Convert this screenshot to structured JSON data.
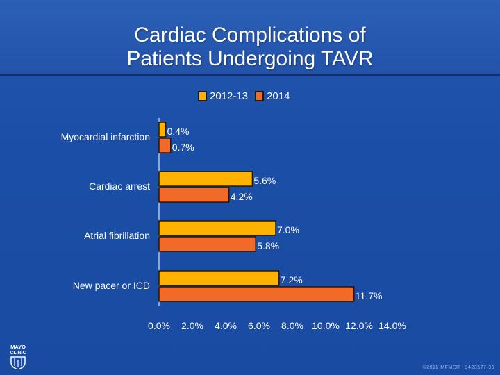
{
  "title_line1": "Cardiac Complications of",
  "title_line2": "Patients Undergoing TAVR",
  "logo_text": "MAYO CLINIC",
  "footer": "©2015 MFMER | 3423577-35",
  "colors": {
    "series_2012_13": "#ffb300",
    "series_2014": "#f26a28",
    "background": "#1b4ea6",
    "text": "#ffffff",
    "bar_outline": "#1a1a1a"
  },
  "chart_data": {
    "type": "bar",
    "orientation": "horizontal",
    "title": "Cardiac Complications of Patients Undergoing TAVR",
    "categories": [
      "Myocardial infarction",
      "Cardiac arrest",
      "Atrial fibrillation",
      "New pacer or ICD"
    ],
    "series": [
      {
        "name": "2012-13",
        "values": [
          0.4,
          5.6,
          7.0,
          7.2
        ],
        "labels": [
          "0.4%",
          "5.6%",
          "7.0%",
          "7.2%"
        ]
      },
      {
        "name": "2014",
        "values": [
          0.7,
          4.2,
          5.8,
          11.7
        ],
        "labels": [
          "0.7%",
          "4.2%",
          "5.8%",
          "11.7%"
        ]
      }
    ],
    "xlim": [
      0,
      14
    ],
    "xticks": [
      0,
      2,
      4,
      6,
      8,
      10,
      12,
      14
    ],
    "xtick_labels": [
      "0.0%",
      "2.0%",
      "4.0%",
      "6.0%",
      "8.0%",
      "10.0%",
      "12.0%",
      "14.0%"
    ],
    "xlabel": "",
    "ylabel": "",
    "grid": false,
    "legend_position": "top"
  }
}
